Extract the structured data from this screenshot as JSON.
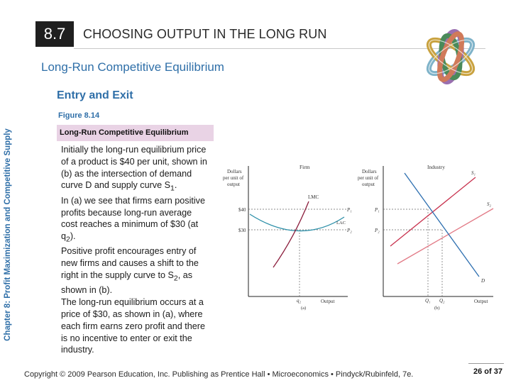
{
  "header": {
    "section_number": "8.7",
    "title": "CHOOSING OUTPUT IN THE LONG RUN"
  },
  "subtitle": "Long-Run Competitive Equilibrium",
  "sidebar_label": "Chapter 8:  Profit Maximization and Competitive Supply",
  "section_heading": "Entry and Exit",
  "figure": {
    "number": "Figure 8.14",
    "title": "Long-Run Competitive Equilibrium",
    "panel_a": {
      "title": "Firm",
      "ylabel": "Dollars per unit of output",
      "xlabel": "Output",
      "caption": "(a)",
      "curve_lmc": "LMC",
      "curve_lac": "LAC",
      "label_p1": "P₁",
      "label_p2": "P₂",
      "tick_40": "$40",
      "tick_30": "$30",
      "tick_q2": "q₂"
    },
    "panel_b": {
      "title": "Industry",
      "ylabel": "Dollars per unit of output",
      "xlabel": "Output",
      "caption": "(b)",
      "curve_s1": "S₁",
      "curve_s2": "S₂",
      "curve_d": "D",
      "tick_p1": "P₁",
      "tick_p2": "P₂",
      "tick_q1": "Q₁",
      "tick_q2": "Q₂"
    }
  },
  "body": {
    "p1_a": "Initially the long-run equilibrium price of a product is $40 per unit, shown in (b) as the intersection of demand curve D and supply curve S",
    "p1_sub": "1",
    "p1_b": ".",
    "p2_a": "In (a) we see that firms earn positive profits because long-run average cost reaches a minimum of $30 (at q",
    "p2_sub": "2",
    "p2_b": ").",
    "p3_a": "Positive profit encourages entry of new firms and causes a shift to the right in the supply curve to S",
    "p3_sub": "2",
    "p3_b": ", as shown in (b).",
    "p4": "The long-run equilibrium occurs at a price of $30, as shown in (a), where each firm earns zero profit and there is no incentive to enter or exit the industry."
  },
  "footer": {
    "copyright": "Copyright © 2009 Pearson Education, Inc. Publishing as Prentice Hall • Microeconomics • Pindyck/Rubinfeld, 7e.",
    "page": "26 of 37"
  },
  "colors": {
    "accent_blue": "#2f6fa8",
    "figure_title_bg": "#e9d3e5",
    "lmc_curve": "#8b1d3c",
    "lac_curve": "#2c8fa8",
    "s1_curve": "#c8324e",
    "s2_curve": "#e27a86",
    "d_curve": "#2d6fb0"
  }
}
